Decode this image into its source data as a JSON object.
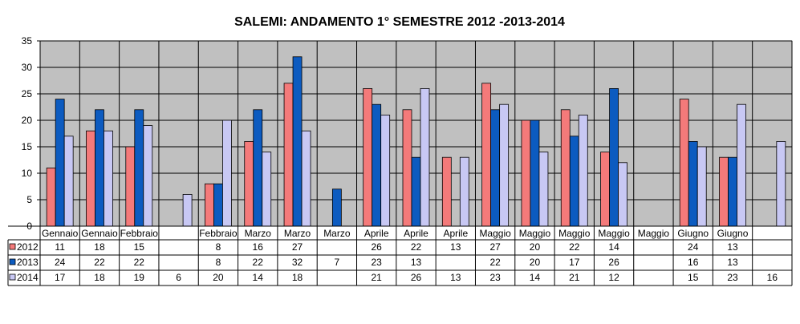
{
  "chart_data": {
    "type": "bar",
    "title": "SALEMI:  ANDAMENTO 1° SEMESTRE  2012 -2013-2014",
    "categories": [
      "Gennaio",
      "Gennaio",
      "Febbraio",
      "",
      "Febbraio",
      "Marzo",
      "Marzo",
      "Marzo",
      "Aprile",
      "Aprile",
      "Aprile",
      "Maggio",
      "Maggio",
      "Maggio",
      "Maggio",
      "Maggio",
      "Giugno",
      "Giugno",
      ""
    ],
    "series": [
      {
        "name": "2012",
        "color": "#f47a7a",
        "values": [
          11,
          18,
          15,
          null,
          8,
          16,
          27,
          null,
          26,
          22,
          13,
          27,
          20,
          22,
          14,
          null,
          24,
          13,
          null
        ]
      },
      {
        "name": "2013",
        "color": "#0c5bc0",
        "values": [
          24,
          22,
          22,
          null,
          8,
          22,
          32,
          7,
          23,
          13,
          null,
          22,
          20,
          17,
          26,
          null,
          16,
          13,
          null
        ]
      },
      {
        "name": "2014",
        "color": "#c8c8f4",
        "values": [
          17,
          18,
          19,
          6,
          20,
          14,
          18,
          null,
          21,
          26,
          13,
          23,
          14,
          21,
          12,
          null,
          15,
          23,
          16
        ]
      }
    ],
    "ylim": [
      0,
      35
    ],
    "yticks": [
      0,
      5,
      10,
      15,
      20,
      25,
      30,
      35
    ],
    "grid": true,
    "legend": "data-table"
  }
}
